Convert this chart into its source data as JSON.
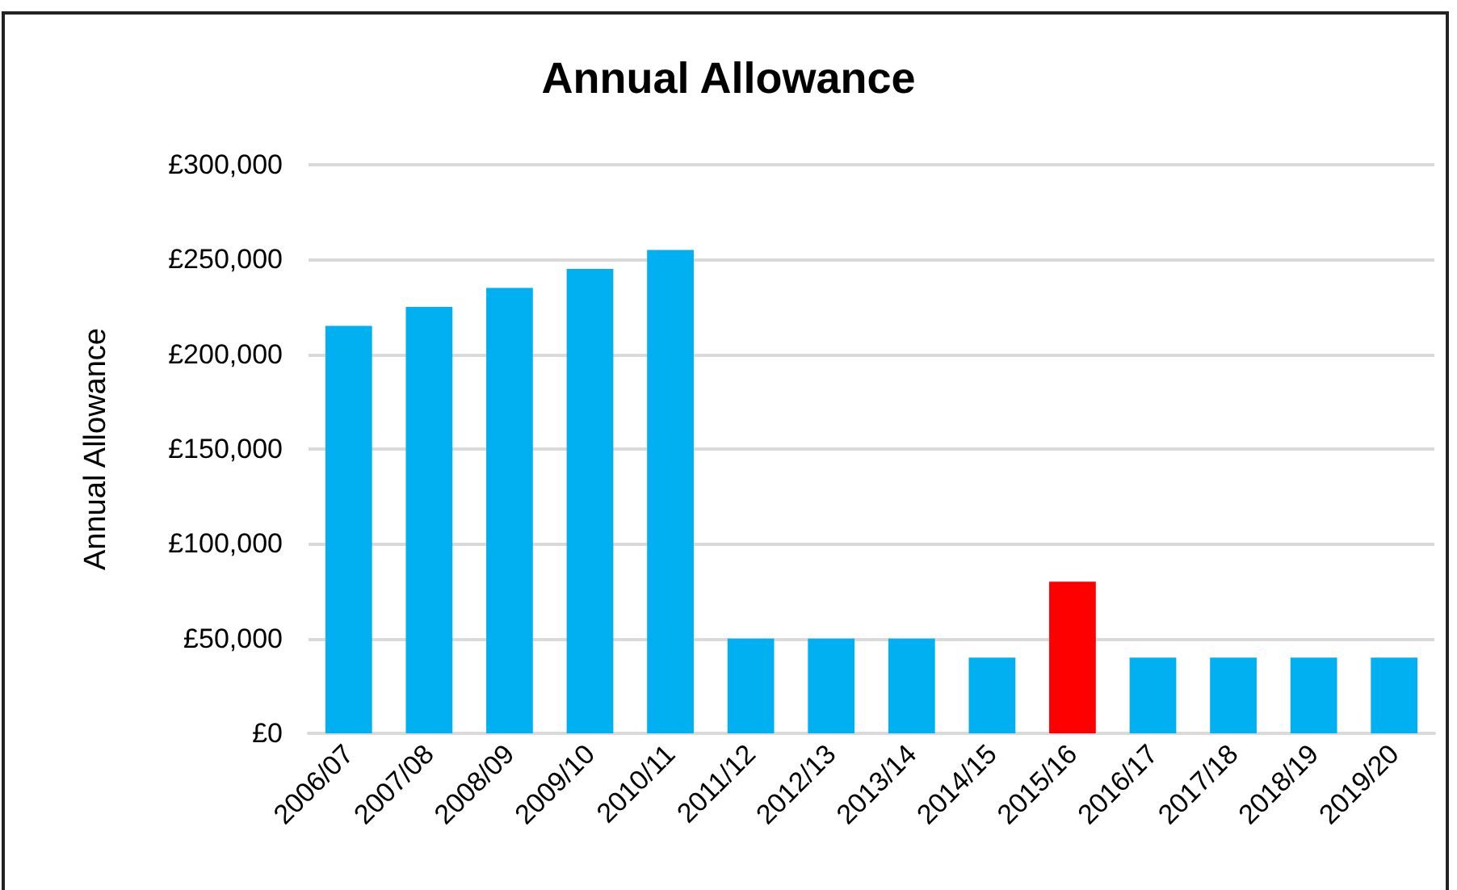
{
  "chart_data": {
    "type": "bar",
    "title": "Annual Allowance",
    "ylabel": "Annual Allowance",
    "categories": [
      "2006/07",
      "2007/08",
      "2008/09",
      "2009/10",
      "2010/11",
      "2011/12",
      "2012/13",
      "2013/14",
      "2014/15",
      "2015/16",
      "2016/17",
      "2017/18",
      "2018/19",
      "2019/20"
    ],
    "values": [
      215000,
      225000,
      235000,
      245000,
      255000,
      50000,
      50000,
      50000,
      40000,
      80000,
      40000,
      40000,
      40000,
      40000
    ],
    "colors": [
      "#00b0f0",
      "#00b0f0",
      "#00b0f0",
      "#00b0f0",
      "#00b0f0",
      "#00b0f0",
      "#00b0f0",
      "#00b0f0",
      "#00b0f0",
      "#ff0000",
      "#00b0f0",
      "#00b0f0",
      "#00b0f0",
      "#00b0f0"
    ],
    "ylim": [
      0,
      300000
    ],
    "yticks": [
      {
        "value": 0,
        "label": "£0"
      },
      {
        "value": 50000,
        "label": "£50,000"
      },
      {
        "value": 100000,
        "label": "£100,000"
      },
      {
        "value": 150000,
        "label": "£150,000"
      },
      {
        "value": 200000,
        "label": "£200,000"
      },
      {
        "value": 250000,
        "label": "£250,000"
      },
      {
        "value": 300000,
        "label": "£300,000"
      }
    ],
    "grid": "y"
  }
}
